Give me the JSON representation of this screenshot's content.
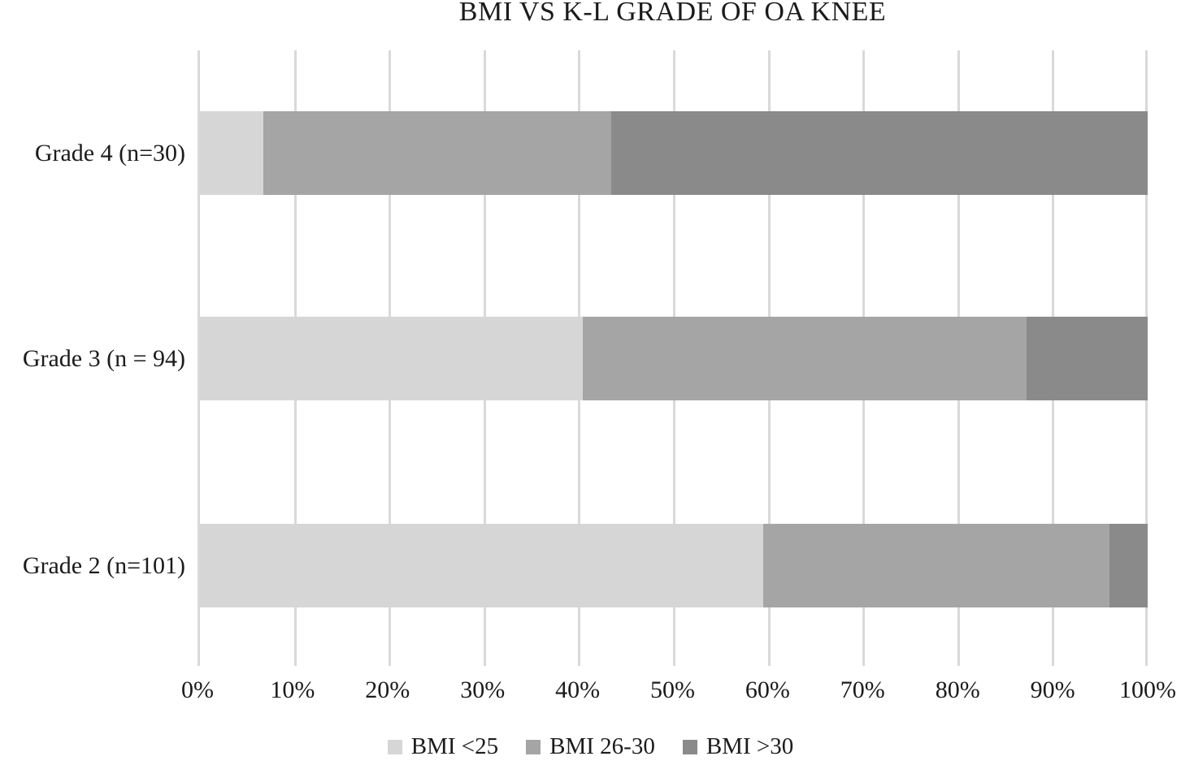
{
  "title": "BMI VS K-L GRADE OF OA KNEE",
  "chart_data": {
    "type": "bar",
    "orientation": "horizontal",
    "stacked": true,
    "percent_stacked": true,
    "title": "BMI VS K-L GRADE OF OA KNEE",
    "categories": [
      "Grade 4 (n=30)",
      "Grade 3 (n = 94)",
      "Grade 2 (n=101)"
    ],
    "series": [
      {
        "name": "BMI <25",
        "color": "#d6d6d6",
        "values": [
          6.7,
          40.4,
          59.4
        ]
      },
      {
        "name": "BMI 26-30",
        "color": "#a5a5a5",
        "values": [
          36.7,
          46.8,
          36.6
        ]
      },
      {
        "name": "BMI >30",
        "color": "#8a8a8a",
        "values": [
          56.6,
          12.8,
          4.0
        ]
      }
    ],
    "xlabel": "",
    "ylabel": "",
    "xlim": [
      0,
      100
    ],
    "x_tick_step": 10,
    "x_tick_labels": [
      "0%",
      "10%",
      "20%",
      "30%",
      "40%",
      "50%",
      "60%",
      "70%",
      "80%",
      "90%",
      "100%"
    ],
    "gridlines": "vertical",
    "gridline_color": "#d9d9d9",
    "axis_line_color": "#d9d9d9",
    "legend_position": "bottom",
    "legend": [
      "BMI <25",
      "BMI 26-30",
      "BMI >30"
    ]
  }
}
